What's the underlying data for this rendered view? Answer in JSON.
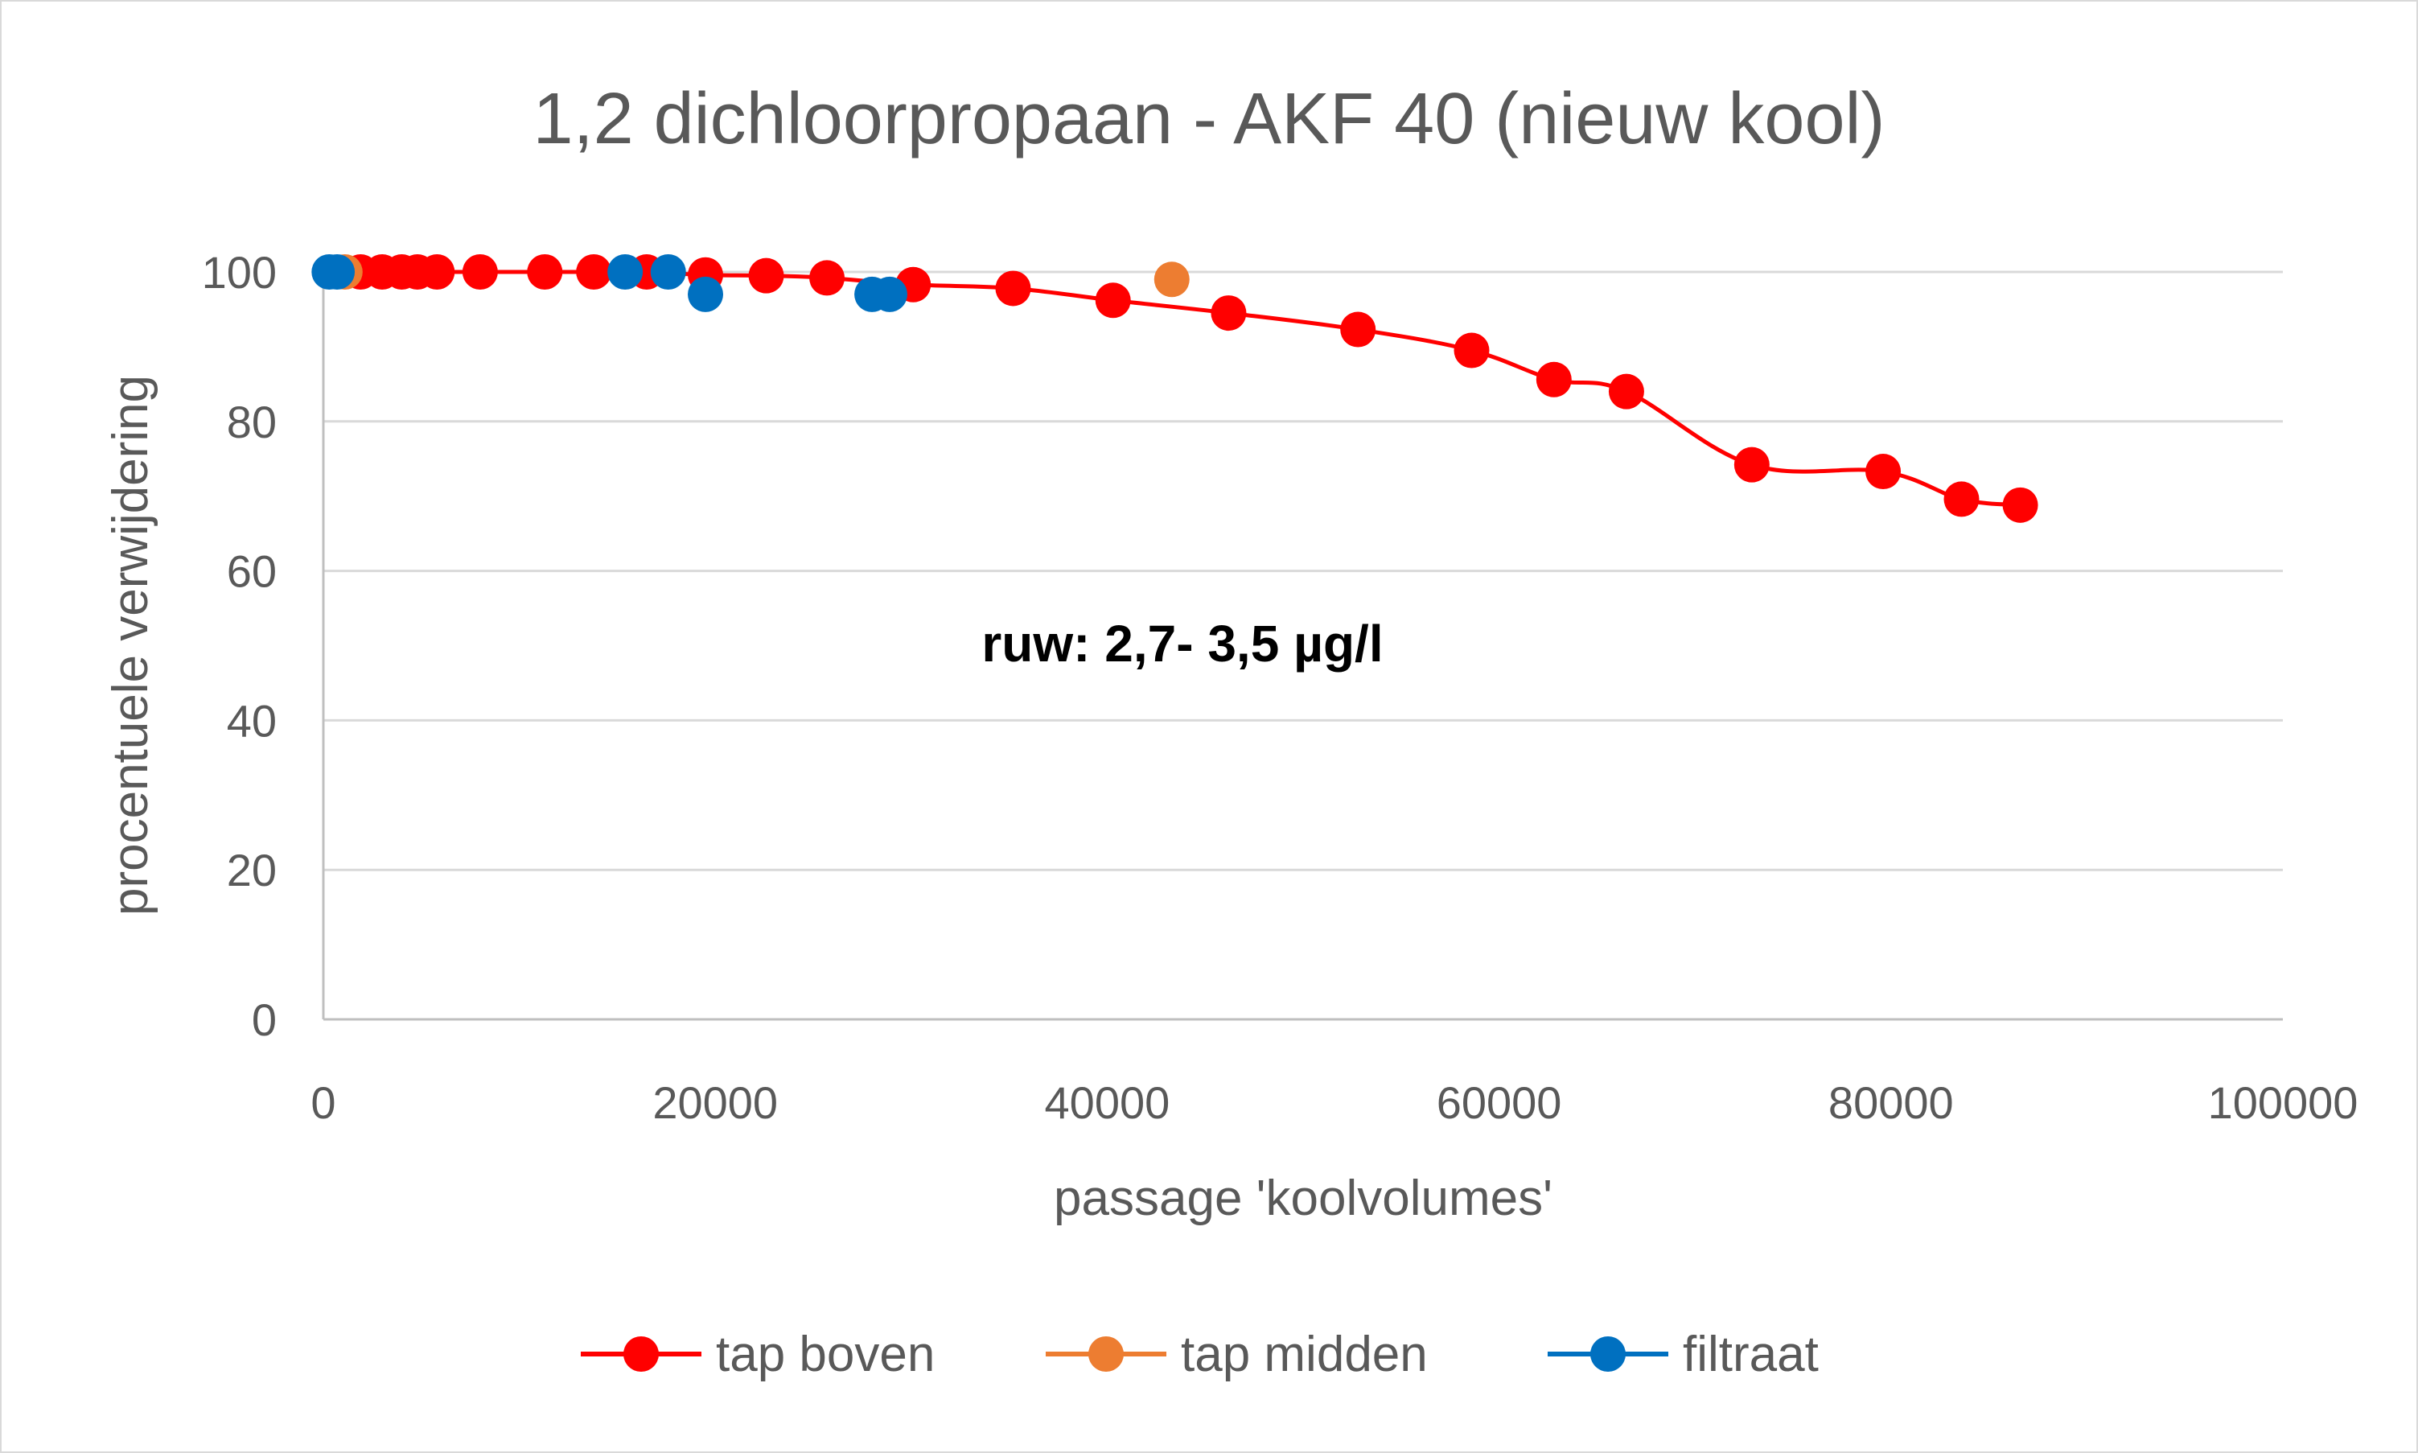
{
  "chart_data": {
    "type": "line",
    "title": "1,2 dichloorpropaan - AKF 40 (nieuw kool)",
    "xlabel": "passage 'koolvolumes'",
    "ylabel": "procentuele verwijdering",
    "xlim": [
      0,
      100000
    ],
    "ylim": [
      0,
      100
    ],
    "xticks": [
      0,
      20000,
      40000,
      60000,
      80000,
      100000
    ],
    "xtick_labels": [
      "0",
      "20000",
      "40000",
      "60000",
      "80000",
      "100000"
    ],
    "yticks": [
      0,
      20,
      40,
      60,
      80,
      100
    ],
    "ytick_labels": [
      "0",
      "20",
      "40",
      "60",
      "80",
      "100"
    ],
    "grid": "horizontal",
    "legend": "bottom",
    "annotation": "ruw: 2,7- 3,5 µg/l",
    "series": [
      {
        "name": "tap boven",
        "color": "#ff0000",
        "x": [
          1900,
          3000,
          4000,
          4800,
          5800,
          8000,
          11300,
          13800,
          16500,
          19500,
          22600,
          25700,
          30100,
          35200,
          40300,
          46200,
          52800,
          58600,
          62800,
          66500,
          72900,
          79600,
          83600,
          86600
        ],
        "y": [
          100,
          100,
          100,
          100,
          100,
          100,
          100,
          100,
          100,
          99.6,
          99.5,
          99.2,
          98.3,
          97.8,
          96.2,
          94.5,
          92.3,
          89.5,
          85.6,
          84,
          74.2,
          73.3,
          69.6,
          68.8
        ]
      },
      {
        "name": "tap midden",
        "color": "#ed7d31",
        "x": [
          1100,
          43300
        ],
        "y": [
          100,
          99
        ]
      },
      {
        "name": "filtraat",
        "color": "#0070c0",
        "x": [
          300,
          700,
          15400,
          17600,
          19500,
          28000,
          28900
        ],
        "y": [
          100,
          100,
          100,
          100,
          97,
          97,
          97
        ]
      }
    ]
  }
}
